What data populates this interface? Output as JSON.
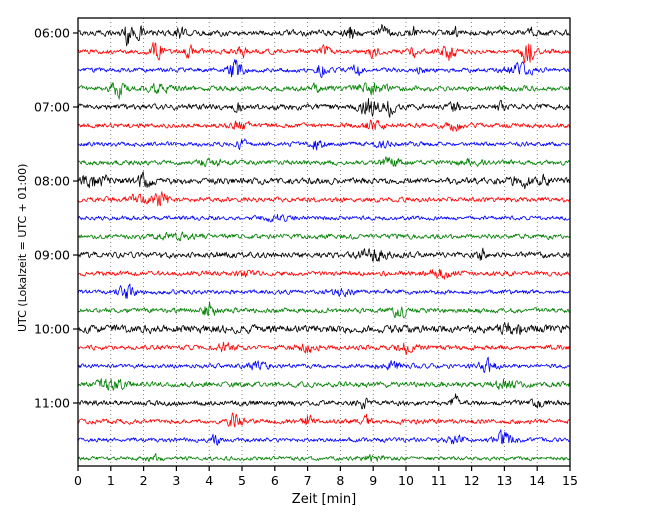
{
  "chart_data": {
    "type": "line",
    "subtype": "seismogram-helicorder",
    "title": "",
    "xlabel": "Zeit  [min]",
    "ylabel": "UTC (Lokalzeit = UTC + 01:00)",
    "xlim": [
      0,
      15
    ],
    "x_ticks": [
      0,
      1,
      2,
      3,
      4,
      5,
      6,
      7,
      8,
      9,
      10,
      11,
      12,
      13,
      14,
      15
    ],
    "y_tick_labels": [
      "06:00",
      "07:00",
      "08:00",
      "09:00",
      "10:00",
      "11:00"
    ],
    "minutes_per_row": 15,
    "grid": "vertical dotted line at every minute",
    "legend": "none",
    "trace_color_cycle": [
      "#000000",
      "#ff0000",
      "#0000ff",
      "#008000"
    ],
    "events_format": "[minute, burst_amplitude_px, burst_width_min]",
    "rows": [
      {
        "hour": "06:00",
        "color": "#000000",
        "amp": 1.2,
        "events": [
          [
            1.5,
            9,
            0.1
          ],
          [
            1.9,
            4,
            0.1
          ],
          [
            3.1,
            5,
            0.08
          ],
          [
            8.3,
            6,
            0.1
          ],
          [
            9.3,
            5,
            0.1
          ],
          [
            10.2,
            4,
            0.08
          ],
          [
            11.5,
            3,
            0.1
          ],
          [
            13.8,
            3,
            0.1
          ]
        ]
      },
      {
        "hour": "",
        "color": "#ff0000",
        "amp": 1.0,
        "events": [
          [
            2.4,
            8,
            0.12
          ],
          [
            3.4,
            4,
            0.1
          ],
          [
            5.0,
            5,
            0.1
          ],
          [
            7.5,
            4,
            0.1
          ],
          [
            9.0,
            6,
            0.1
          ],
          [
            10.2,
            9,
            0.05
          ],
          [
            11.3,
            6,
            0.15
          ],
          [
            13.7,
            13,
            0.12
          ]
        ]
      },
      {
        "hour": "",
        "color": "#0000ff",
        "amp": 0.9,
        "events": [
          [
            4.8,
            8,
            0.15
          ],
          [
            7.4,
            5,
            0.1
          ],
          [
            8.5,
            4,
            0.1
          ],
          [
            10.4,
            3,
            0.1
          ],
          [
            13.5,
            4,
            0.3
          ]
        ]
      },
      {
        "hour": "",
        "color": "#008000",
        "amp": 1.1,
        "events": [
          [
            1.2,
            7,
            0.15
          ],
          [
            2.5,
            3,
            0.2
          ],
          [
            7.3,
            3,
            0.1
          ],
          [
            9.0,
            3,
            0.3
          ]
        ]
      },
      {
        "hour": "07:00",
        "color": "#000000",
        "amp": 1.2,
        "events": [
          [
            4.9,
            5,
            0.08
          ],
          [
            8.9,
            7,
            0.2
          ],
          [
            9.5,
            5,
            0.1
          ],
          [
            11.5,
            4,
            0.1
          ],
          [
            12.9,
            3,
            0.1
          ]
        ]
      },
      {
        "hour": "",
        "color": "#ff0000",
        "amp": 1.0,
        "events": [
          [
            5.0,
            3,
            0.2
          ],
          [
            9.0,
            3,
            0.2
          ],
          [
            11.5,
            3,
            0.15
          ]
        ]
      },
      {
        "hour": "",
        "color": "#0000ff",
        "amp": 0.9,
        "events": [
          [
            5.0,
            4,
            0.1
          ],
          [
            7.3,
            4,
            0.15
          ],
          [
            9.3,
            2,
            0.2
          ]
        ]
      },
      {
        "hour": "",
        "color": "#008000",
        "amp": 1.0,
        "events": [
          [
            4.0,
            2,
            0.3
          ],
          [
            9.5,
            3,
            0.2
          ],
          [
            12.0,
            2,
            0.2
          ]
        ]
      },
      {
        "hour": "08:00",
        "color": "#000000",
        "amp": 1.3,
        "events": [
          [
            0.5,
            5,
            0.3
          ],
          [
            2.0,
            4,
            0.2
          ],
          [
            13.5,
            5,
            0.2
          ],
          [
            14.2,
            4,
            0.1
          ]
        ]
      },
      {
        "hour": "",
        "color": "#ff0000",
        "amp": 1.0,
        "events": [
          [
            1.8,
            3,
            0.2
          ],
          [
            2.5,
            6,
            0.2
          ]
        ]
      },
      {
        "hour": "",
        "color": "#0000ff",
        "amp": 0.85,
        "events": [
          [
            6.0,
            2,
            0.3
          ]
        ]
      },
      {
        "hour": "",
        "color": "#008000",
        "amp": 1.0,
        "events": [
          [
            3.0,
            2,
            0.4
          ]
        ]
      },
      {
        "hour": "09:00",
        "color": "#000000",
        "amp": 1.2,
        "events": [
          [
            9.0,
            4,
            0.3
          ],
          [
            12.3,
            4,
            0.1
          ]
        ]
      },
      {
        "hour": "",
        "color": "#ff0000",
        "amp": 1.0,
        "events": [
          [
            5.0,
            3,
            0.15
          ],
          [
            11.0,
            3,
            0.3
          ]
        ]
      },
      {
        "hour": "",
        "color": "#0000ff",
        "amp": 0.9,
        "events": [
          [
            1.5,
            5,
            0.2
          ],
          [
            8.0,
            3,
            0.2
          ]
        ]
      },
      {
        "hour": "",
        "color": "#008000",
        "amp": 1.0,
        "events": [
          [
            4.0,
            6,
            0.15
          ],
          [
            9.8,
            5,
            0.15
          ]
        ]
      },
      {
        "hour": "10:00",
        "color": "#000000",
        "amp": 1.6,
        "events": [
          [
            13.2,
            5,
            0.2
          ]
        ]
      },
      {
        "hour": "",
        "color": "#ff0000",
        "amp": 1.0,
        "events": [
          [
            4.5,
            3,
            0.2
          ],
          [
            7.0,
            3,
            0.2
          ],
          [
            10.0,
            3,
            0.2
          ]
        ]
      },
      {
        "hour": "",
        "color": "#0000ff",
        "amp": 0.9,
        "events": [
          [
            5.5,
            3,
            0.2
          ],
          [
            9.5,
            3,
            0.3
          ],
          [
            12.5,
            4,
            0.2
          ]
        ]
      },
      {
        "hour": "",
        "color": "#008000",
        "amp": 1.1,
        "events": [
          [
            1.0,
            4,
            0.3
          ],
          [
            13.0,
            4,
            0.2
          ]
        ]
      },
      {
        "hour": "11:00",
        "color": "#000000",
        "amp": 1.1,
        "events": [
          [
            8.7,
            4,
            0.1
          ],
          [
            11.5,
            5,
            0.1
          ],
          [
            14.0,
            3,
            0.1
          ]
        ]
      },
      {
        "hour": "",
        "color": "#ff0000",
        "amp": 1.0,
        "events": [
          [
            4.8,
            6,
            0.15
          ],
          [
            7.0,
            5,
            0.1
          ],
          [
            8.8,
            4,
            0.1
          ]
        ]
      },
      {
        "hour": "",
        "color": "#0000ff",
        "amp": 0.9,
        "events": [
          [
            4.2,
            4,
            0.1
          ],
          [
            11.5,
            3,
            0.2
          ],
          [
            13.0,
            6,
            0.2
          ]
        ]
      },
      {
        "hour": "",
        "color": "#008000",
        "amp": 0.8,
        "events": [
          [
            2.3,
            3,
            0.15
          ],
          [
            9.0,
            2,
            0.3
          ]
        ]
      }
    ]
  }
}
